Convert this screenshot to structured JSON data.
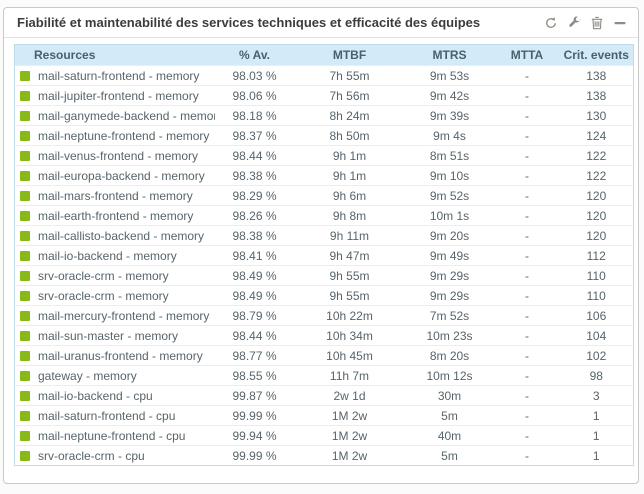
{
  "widget": {
    "title": "Fiabilité et maintenabilité des services techniques et efficacité des équipes",
    "actions": [
      "refresh",
      "configure",
      "delete",
      "collapse"
    ]
  },
  "table": {
    "columns": [
      "Resources",
      "% Av.",
      "MTBF",
      "MTRS",
      "MTTA",
      "Crit. events"
    ],
    "rows": [
      {
        "status": "ok",
        "resource": "mail-saturn-frontend - memory",
        "availability": "98.03 %",
        "mtbf": "7h 55m",
        "mtrs": "9m 53s",
        "mtta": "-",
        "crit_events": "138"
      },
      {
        "status": "ok",
        "resource": "mail-jupiter-frontend - memory",
        "availability": "98.06 %",
        "mtbf": "7h 56m",
        "mtrs": "9m 42s",
        "mtta": "-",
        "crit_events": "138"
      },
      {
        "status": "ok",
        "resource": "mail-ganymede-backend - memory",
        "availability": "98.18 %",
        "mtbf": "8h 24m",
        "mtrs": "9m 39s",
        "mtta": "-",
        "crit_events": "130"
      },
      {
        "status": "ok",
        "resource": "mail-neptune-frontend - memory",
        "availability": "98.37 %",
        "mtbf": "8h 50m",
        "mtrs": "9m 4s",
        "mtta": "-",
        "crit_events": "124"
      },
      {
        "status": "ok",
        "resource": "mail-venus-frontend - memory",
        "availability": "98.44 %",
        "mtbf": "9h 1m",
        "mtrs": "8m 51s",
        "mtta": "-",
        "crit_events": "122"
      },
      {
        "status": "ok",
        "resource": "mail-europa-backend - memory",
        "availability": "98.38 %",
        "mtbf": "9h 1m",
        "mtrs": "9m 10s",
        "mtta": "-",
        "crit_events": "122"
      },
      {
        "status": "ok",
        "resource": "mail-mars-frontend - memory",
        "availability": "98.29 %",
        "mtbf": "9h 6m",
        "mtrs": "9m 52s",
        "mtta": "-",
        "crit_events": "120"
      },
      {
        "status": "ok",
        "resource": "mail-earth-frontend - memory",
        "availability": "98.26 %",
        "mtbf": "9h 8m",
        "mtrs": "10m 1s",
        "mtta": "-",
        "crit_events": "120"
      },
      {
        "status": "ok",
        "resource": "mail-callisto-backend - memory",
        "availability": "98.38 %",
        "mtbf": "9h 11m",
        "mtrs": "9m 20s",
        "mtta": "-",
        "crit_events": "120"
      },
      {
        "status": "ok",
        "resource": "mail-io-backend - memory",
        "availability": "98.41 %",
        "mtbf": "9h 47m",
        "mtrs": "9m 49s",
        "mtta": "-",
        "crit_events": "112"
      },
      {
        "status": "ok",
        "resource": "srv-oracle-crm - memory",
        "availability": "98.49 %",
        "mtbf": "9h 55m",
        "mtrs": "9m 29s",
        "mtta": "-",
        "crit_events": "110"
      },
      {
        "status": "ok",
        "resource": "srv-oracle-crm - memory",
        "availability": "98.49 %",
        "mtbf": "9h 55m",
        "mtrs": "9m 29s",
        "mtta": "-",
        "crit_events": "110"
      },
      {
        "status": "ok",
        "resource": "mail-mercury-frontend - memory",
        "availability": "98.79 %",
        "mtbf": "10h 22m",
        "mtrs": "7m 52s",
        "mtta": "-",
        "crit_events": "106"
      },
      {
        "status": "ok",
        "resource": "mail-sun-master - memory",
        "availability": "98.44 %",
        "mtbf": "10h 34m",
        "mtrs": "10m 23s",
        "mtta": "-",
        "crit_events": "104"
      },
      {
        "status": "ok",
        "resource": "mail-uranus-frontend - memory",
        "availability": "98.77 %",
        "mtbf": "10h 45m",
        "mtrs": "8m 20s",
        "mtta": "-",
        "crit_events": "102"
      },
      {
        "status": "ok",
        "resource": "gateway - memory",
        "availability": "98.55 %",
        "mtbf": "11h 7m",
        "mtrs": "10m 12s",
        "mtta": "-",
        "crit_events": "98"
      },
      {
        "status": "ok",
        "resource": "mail-io-backend - cpu",
        "availability": "99.87 %",
        "mtbf": "2w 1d",
        "mtrs": "30m",
        "mtta": "-",
        "crit_events": "3"
      },
      {
        "status": "ok",
        "resource": "mail-saturn-frontend - cpu",
        "availability": "99.99 %",
        "mtbf": "1M 2w",
        "mtrs": "5m",
        "mtta": "-",
        "crit_events": "1"
      },
      {
        "status": "ok",
        "resource": "mail-neptune-frontend - cpu",
        "availability": "99.94 %",
        "mtbf": "1M 2w",
        "mtrs": "40m",
        "mtta": "-",
        "crit_events": "1"
      },
      {
        "status": "ok",
        "resource": "srv-oracle-crm - cpu",
        "availability": "99.99 %",
        "mtbf": "1M 2w",
        "mtrs": "5m",
        "mtta": "-",
        "crit_events": "1"
      }
    ]
  },
  "colors": {
    "status_ok": "#88b917",
    "header_bg": "#d3ebf8",
    "table_border": "#bedbe9",
    "icon_gray": "#8d8d85"
  }
}
